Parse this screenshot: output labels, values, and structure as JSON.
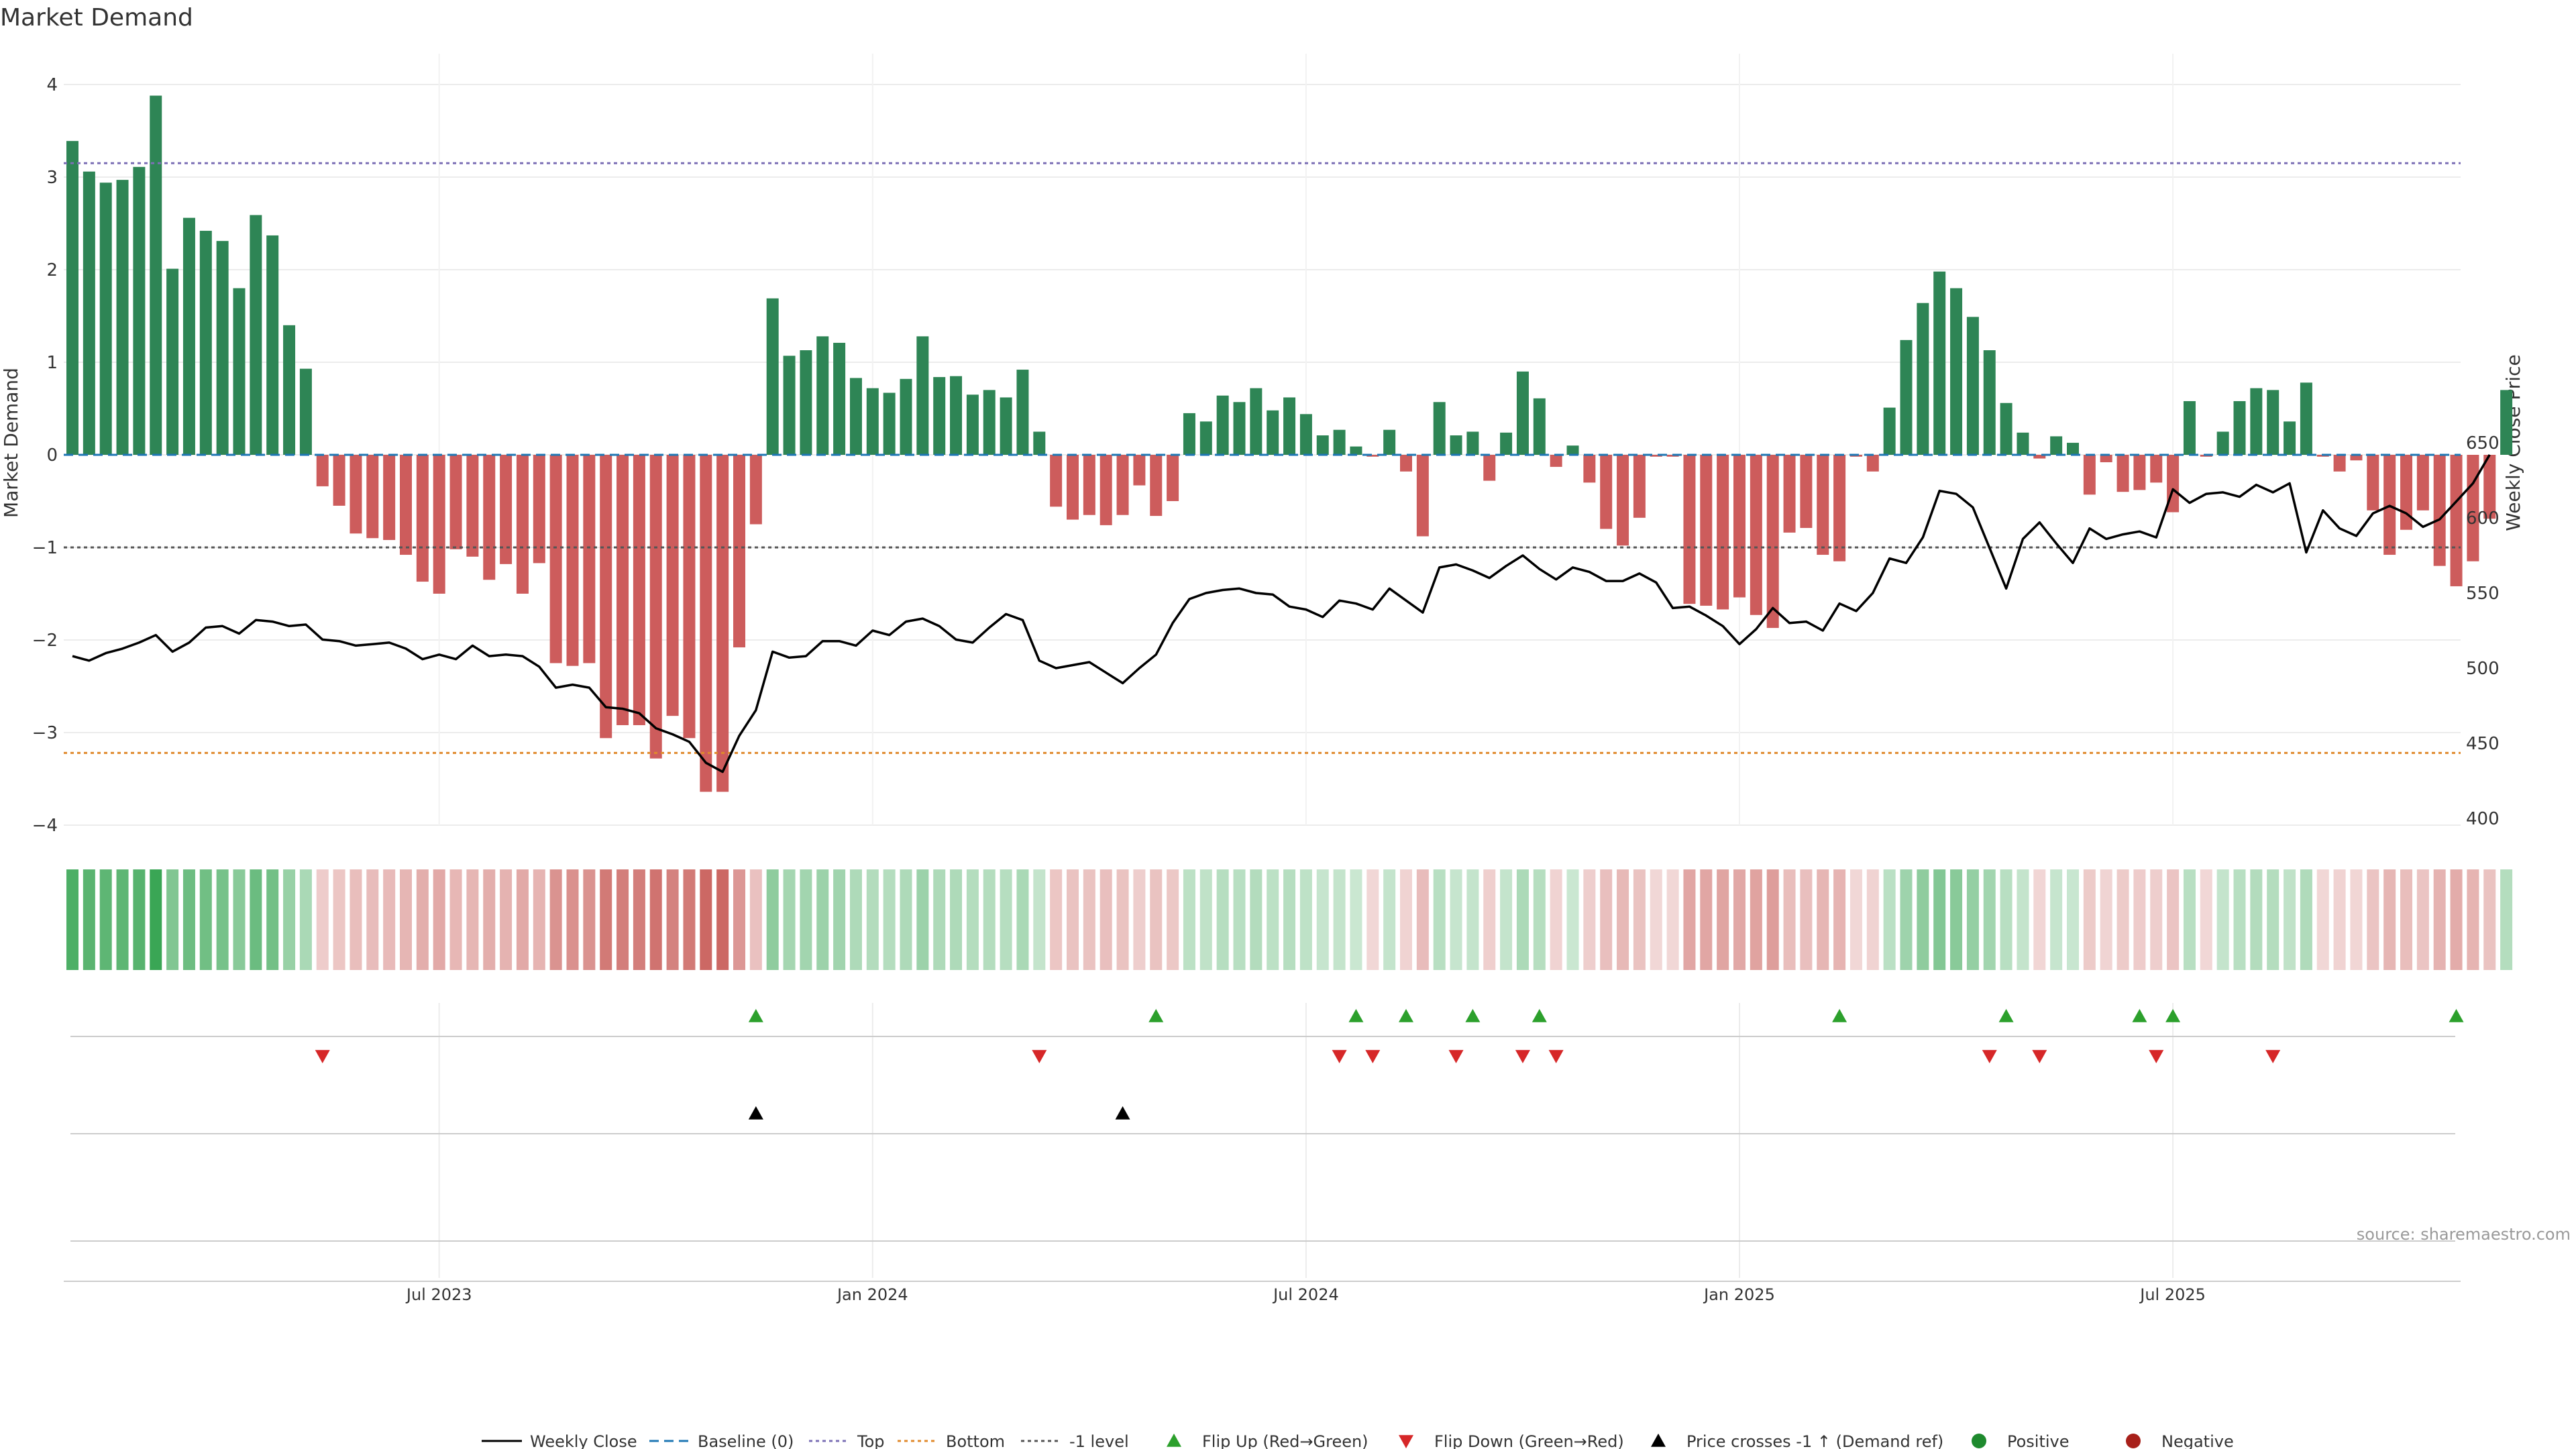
{
  "chart_data": {
    "type": "bar+line",
    "title": "Market Demand",
    "ylabel_left": "Market Demand",
    "ylabel_right": "Weekly Close Price",
    "y_left_ticks": [
      "4",
      "3",
      "2",
      "1",
      "0",
      "−1",
      "−2",
      "−3",
      "−4"
    ],
    "y_left_values": [
      4,
      3,
      2,
      1,
      0,
      -1,
      -2,
      -3,
      -4
    ],
    "ylim_left": [
      -4.4,
      4.2
    ],
    "y_right_ticks": [
      "650",
      "600",
      "550",
      "500",
      "450",
      "400"
    ],
    "y_right_values": [
      650,
      600,
      550,
      500,
      450,
      400
    ],
    "ylim_right": [
      393,
      653
    ],
    "x_tick_labels": [
      "Jul 2023",
      "Jan 2024",
      "Jul 2024",
      "Jan 2025",
      "Jul 2025"
    ],
    "x_tick_weeks": [
      22,
      48,
      74,
      100,
      126
    ],
    "reference_lines": {
      "baseline": 0,
      "top": 3.15,
      "bottom": -3.22,
      "minus_one": -1
    },
    "demand": [
      3.39,
      3.06,
      2.94,
      2.97,
      3.11,
      3.88,
      2.01,
      2.56,
      2.42,
      2.31,
      1.8,
      2.59,
      2.37,
      1.4,
      0.93,
      -0.34,
      -0.55,
      -0.85,
      -0.9,
      -0.92,
      -1.08,
      -1.37,
      -1.5,
      -1.02,
      -1.1,
      -1.35,
      -1.18,
      -1.5,
      -1.17,
      -2.25,
      -2.28,
      -2.25,
      -3.06,
      -2.92,
      -2.92,
      -3.28,
      -2.82,
      -3.06,
      -3.64,
      -3.64,
      -2.08,
      -0.75,
      1.69,
      1.07,
      1.13,
      1.28,
      1.21,
      0.83,
      0.72,
      0.67,
      0.82,
      1.28,
      0.84,
      0.85,
      0.65,
      0.7,
      0.62,
      0.92,
      0.25,
      -0.56,
      -0.7,
      -0.65,
      -0.76,
      -0.65,
      -0.33,
      -0.66,
      -0.5,
      0.45,
      0.36,
      0.64,
      0.57,
      0.72,
      0.48,
      0.62,
      0.44,
      0.21,
      0.27,
      0.09,
      -0.02,
      0.27,
      -0.18,
      -0.88,
      0.57,
      0.21,
      0.25,
      -0.28,
      0.24,
      0.9,
      0.61,
      -0.13,
      0.1,
      -0.3,
      -0.8,
      -0.98,
      -0.68,
      -0.02,
      -0.02,
      -1.61,
      -1.63,
      -1.67,
      -1.54,
      -1.73,
      -1.87,
      -0.84,
      -0.79,
      -1.08,
      -1.15,
      -0.02,
      -0.18,
      0.51,
      1.24,
      1.64,
      1.98,
      1.8,
      1.49,
      1.13,
      0.56,
      0.24,
      -0.04,
      0.2,
      0.13,
      -0.43,
      -0.08,
      -0.4,
      -0.38,
      -0.3,
      -0.62,
      0.58,
      -0.02,
      0.25,
      0.58,
      0.72,
      0.7,
      0.36,
      0.78,
      -0.02,
      -0.18,
      -0.06,
      -0.6,
      -1.08,
      -0.81,
      -0.6,
      -1.2,
      -1.42,
      -1.15,
      -0.69,
      0.7
    ],
    "weekly_close": [
      508,
      505,
      510,
      513,
      517,
      522,
      511,
      517,
      527,
      528,
      523,
      532,
      531,
      528,
      529,
      519,
      518,
      515,
      516,
      517,
      513,
      506,
      509,
      506,
      515,
      508,
      509,
      508,
      501,
      487,
      489,
      487,
      474,
      473,
      470,
      460,
      456,
      451,
      437,
      431,
      455,
      472,
      511,
      507,
      508,
      518,
      518,
      515,
      525,
      522,
      531,
      533,
      528,
      519,
      517,
      527,
      536,
      532,
      505,
      500,
      502,
      504,
      497,
      490,
      500,
      509,
      530,
      546,
      550,
      552,
      553,
      550,
      549,
      541,
      539,
      534,
      545,
      543,
      539,
      553,
      545,
      537,
      567,
      569,
      565,
      560,
      568,
      575,
      566,
      559,
      567,
      564,
      558,
      558,
      563,
      557,
      540,
      541,
      535,
      528,
      516,
      526,
      540,
      530,
      531,
      525,
      543,
      538,
      550,
      573,
      570,
      587,
      618,
      616,
      607,
      580,
      553,
      586,
      597,
      583,
      570,
      593,
      586,
      589,
      591,
      587,
      619,
      610,
      616,
      617,
      614,
      622,
      617,
      623,
      577,
      605,
      593,
      588,
      603,
      608,
      603,
      594,
      599,
      611,
      623,
      642
    ],
    "status_strip": {
      "positive_color": "#3aa655",
      "negative_color": "#c9605c"
    },
    "flip_up_weeks": [
      41,
      65,
      77,
      80,
      84,
      88,
      106,
      116,
      124,
      126,
      143
    ],
    "flip_down_weeks": [
      15,
      58,
      76,
      78,
      83,
      87,
      89,
      115,
      118,
      125,
      132
    ],
    "price_cross_weeks": [
      41,
      63
    ],
    "source": "source: sharemaestro.com",
    "legend": [
      {
        "label": "Weekly Close",
        "kind": "line",
        "color": "#000000"
      },
      {
        "label": "Baseline (0)",
        "kind": "dash",
        "color": "#1f77b4"
      },
      {
        "label": "Top",
        "kind": "dot",
        "color": "#7b6fb5"
      },
      {
        "label": "Bottom",
        "kind": "dot",
        "color": "#e08a2c"
      },
      {
        "label": "-1 level",
        "kind": "dot",
        "color": "#555555"
      },
      {
        "label": "Flip Up (Red→Green)",
        "kind": "tri-up",
        "color": "#2ca02c"
      },
      {
        "label": "Flip Down (Green→Red)",
        "kind": "tri-down",
        "color": "#d62728"
      },
      {
        "label": "Price crosses -1 ↑ (Demand ref)",
        "kind": "tri-up",
        "color": "#000000"
      },
      {
        "label": "Positive",
        "kind": "circle",
        "color": "#1e8a2e"
      },
      {
        "label": "Negative",
        "kind": "circle",
        "color": "#a8201a"
      }
    ],
    "colors": {
      "pos_bar": "#2e8555",
      "neg_bar": "#cd5c5c",
      "line": "#000000"
    }
  }
}
